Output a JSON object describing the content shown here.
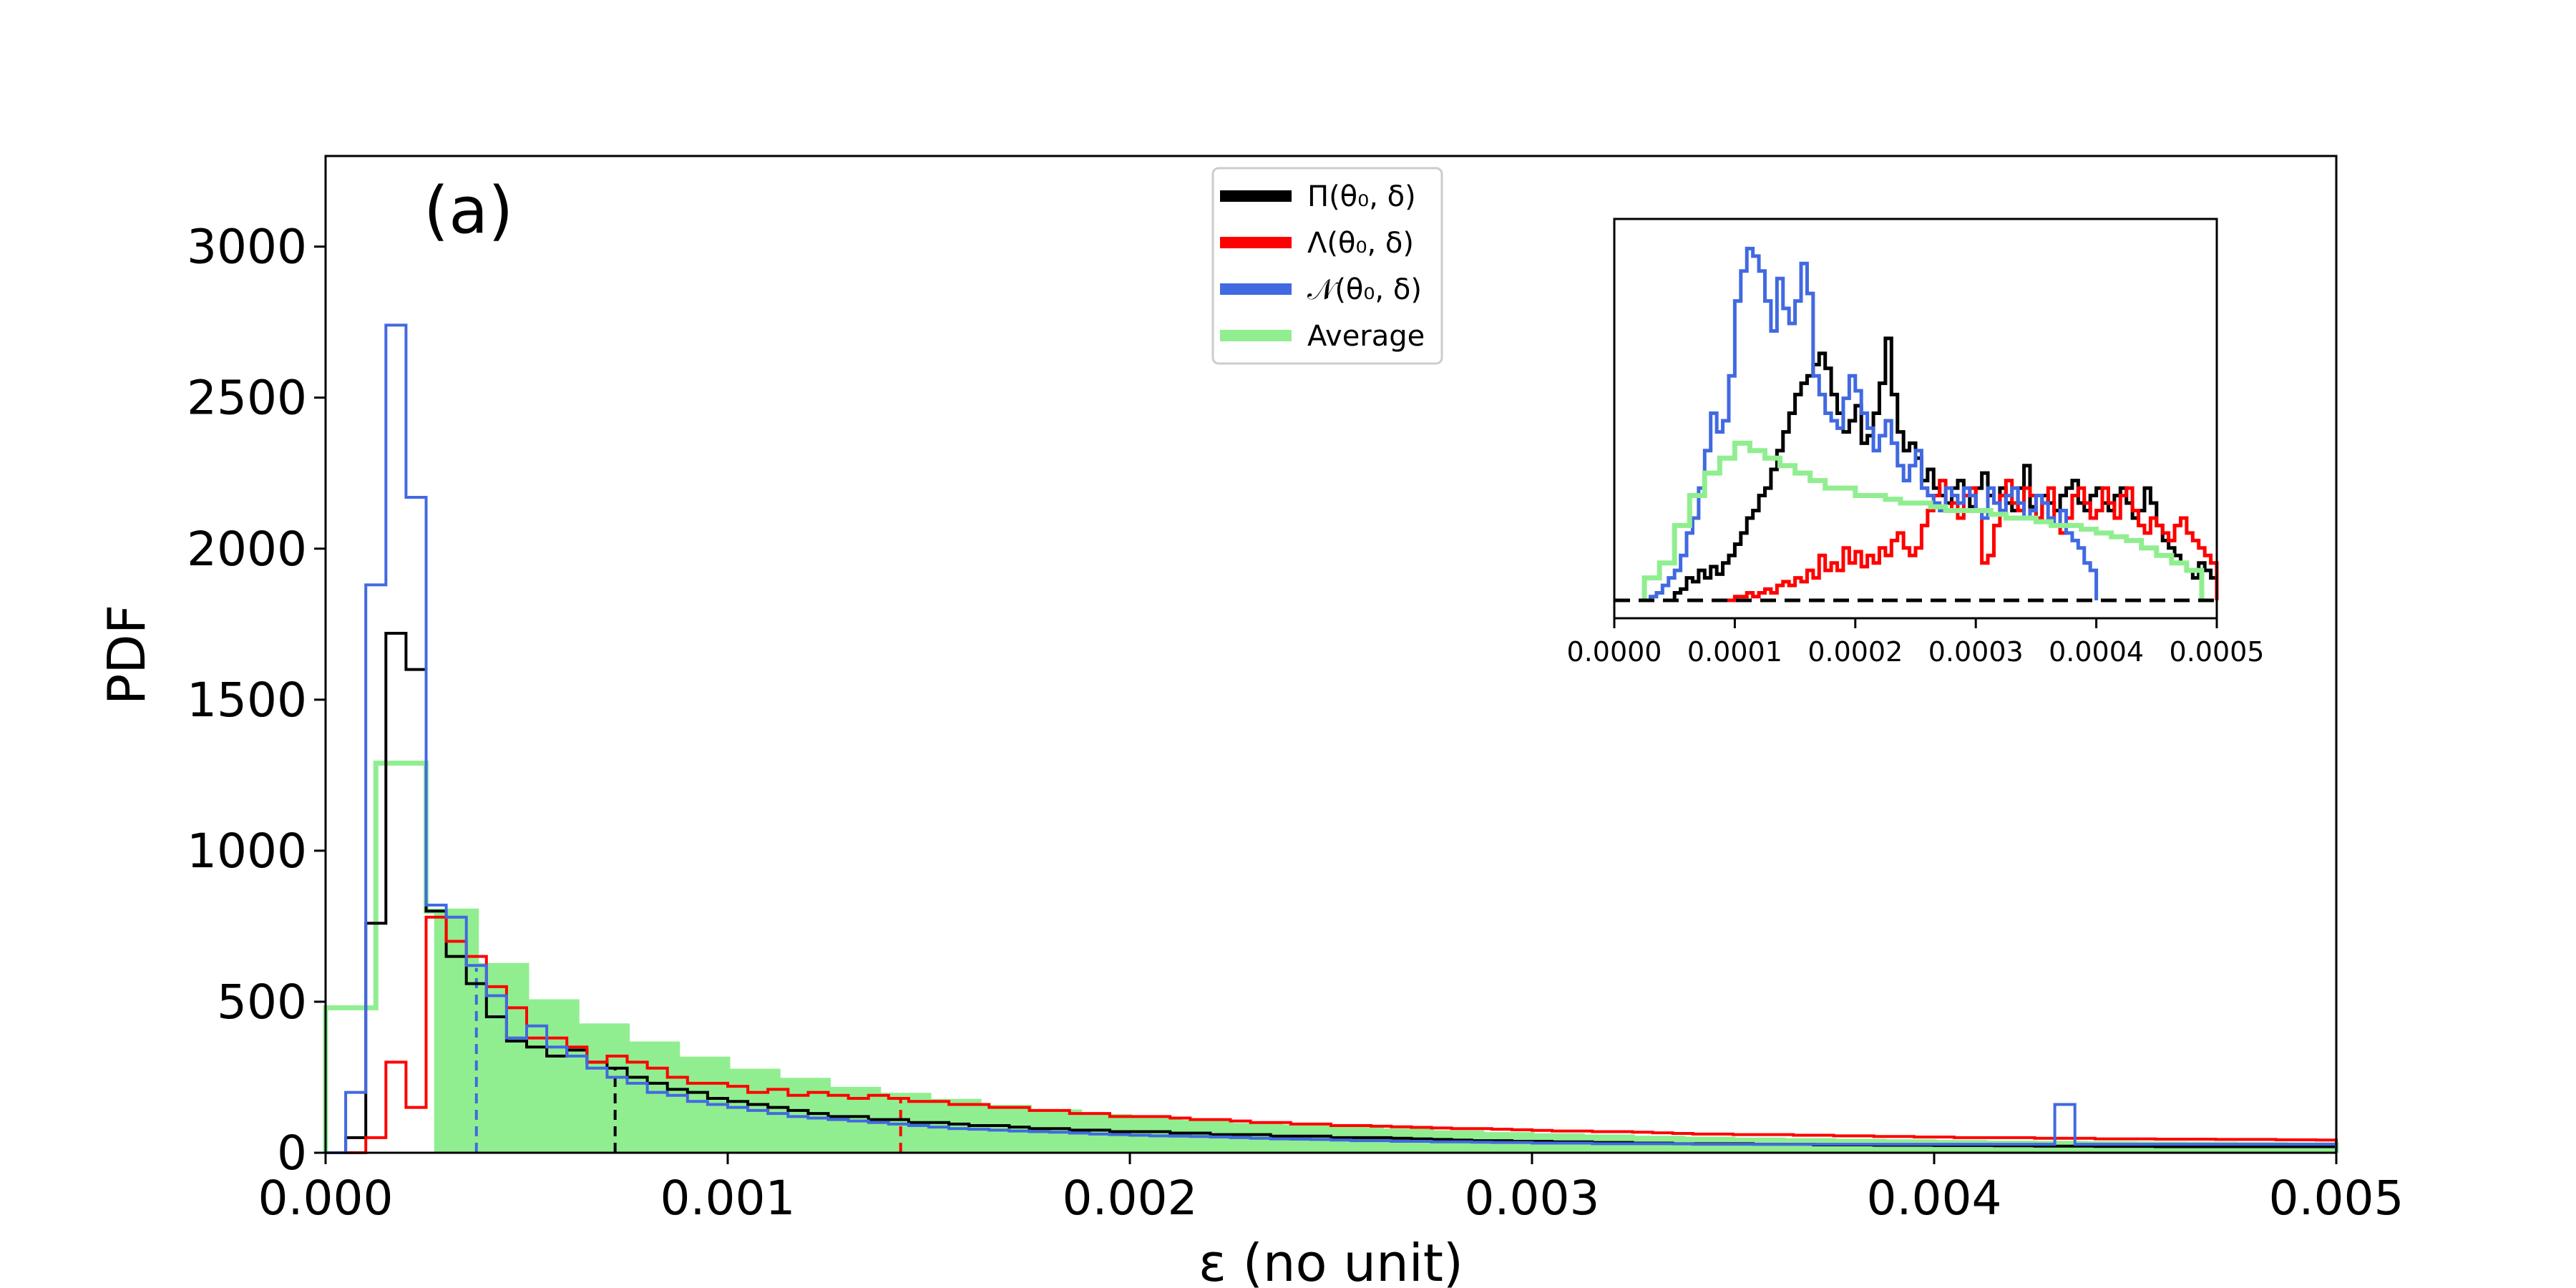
{
  "chart_data": {
    "type": "histogram",
    "panel_label": "(a)",
    "xlabel": "ε (no unit)",
    "ylabel": "PDF",
    "xlim": [
      0,
      0.005
    ],
    "ylim": [
      0,
      3300
    ],
    "x_ticks": [
      "0.000",
      "0.001",
      "0.002",
      "0.003",
      "0.004",
      "0.005"
    ],
    "y_ticks": [
      "0",
      "500",
      "1000",
      "1500",
      "2000",
      "2500",
      "3000"
    ],
    "grid": false,
    "legend_position": "top-center",
    "series": [
      {
        "name": "Π(θ₀, δ)",
        "color": "#000000",
        "bin_start": 5e-05,
        "bin_width": 5e-05,
        "values": [
          50,
          760,
          1720,
          1600,
          800,
          650,
          560,
          450,
          370,
          350,
          320,
          340,
          300,
          280,
          250,
          230,
          210,
          200,
          180,
          170,
          160,
          150,
          140,
          130,
          120,
          120,
          110,
          110,
          100,
          100,
          95,
          90,
          90,
          85,
          80,
          80,
          75,
          75,
          70,
          70,
          70,
          65,
          65,
          60,
          60,
          60,
          55,
          55,
          55,
          50,
          50,
          50,
          48,
          46,
          44,
          42,
          40,
          40,
          38,
          38,
          36,
          36,
          34,
          34,
          32,
          32,
          30,
          30,
          30,
          30,
          28,
          28,
          28,
          26,
          26,
          26,
          25,
          25,
          25,
          24,
          24,
          24,
          23,
          23,
          22,
          22,
          22,
          21,
          21,
          21,
          20,
          20,
          20,
          20,
          20,
          20,
          20,
          20,
          20
        ]
      },
      {
        "name": "Λ(θ₀, δ)",
        "color": "#ff0000",
        "bin_start": 5e-05,
        "bin_width": 5e-05,
        "values": [
          0,
          50,
          300,
          150,
          780,
          700,
          650,
          550,
          480,
          380,
          380,
          350,
          300,
          320,
          300,
          280,
          250,
          230,
          230,
          220,
          200,
          210,
          190,
          200,
          190,
          180,
          190,
          180,
          170,
          170,
          160,
          160,
          150,
          150,
          140,
          140,
          130,
          130,
          120,
          120,
          120,
          115,
          110,
          110,
          105,
          100,
          100,
          95,
          95,
          90,
          90,
          88,
          86,
          84,
          82,
          80,
          80,
          78,
          76,
          74,
          72,
          72,
          70,
          70,
          68,
          66,
          64,
          62,
          62,
          60,
          60,
          60,
          58,
          58,
          56,
          56,
          54,
          54,
          52,
          52,
          50,
          50,
          50,
          50,
          48,
          48,
          48,
          46,
          46,
          46,
          45,
          45,
          45,
          44,
          44,
          44,
          43,
          43,
          42
        ]
      },
      {
        "name": "𝒩(θ₀, δ)",
        "color": "#4169e1",
        "bin_start": 0.0,
        "bin_width": 5e-05,
        "values": [
          0,
          200,
          1880,
          2740,
          2170,
          820,
          780,
          620,
          520,
          380,
          420,
          350,
          320,
          280,
          250,
          230,
          200,
          190,
          170,
          160,
          150,
          140,
          130,
          120,
          115,
          110,
          105,
          100,
          95,
          90,
          85,
          80,
          78,
          75,
          72,
          70,
          68,
          65,
          62,
          60,
          58,
          56,
          55,
          54,
          52,
          50,
          48,
          46,
          45,
          44,
          42,
          40,
          40,
          38,
          38,
          36,
          36,
          35,
          34,
          34,
          32,
          32,
          32,
          30,
          30,
          30,
          30,
          30,
          28,
          28,
          28,
          28,
          28,
          28,
          28,
          28,
          28,
          28,
          28,
          28,
          28,
          28,
          28,
          28,
          28,
          28,
          160,
          28,
          28,
          28,
          28,
          28,
          28,
          28,
          28,
          28,
          28,
          28,
          28,
          28,
          28
        ]
      },
      {
        "name": "Average",
        "color": "#90ee90",
        "bin_start": 0.0,
        "bin_width": 0.000125,
        "values": [
          480,
          1290,
          800,
          620,
          500,
          420,
          360,
          310,
          270,
          240,
          210,
          190,
          170,
          150,
          135,
          120,
          110,
          100,
          90,
          85,
          78,
          72,
          66,
          60,
          56,
          52,
          48,
          45,
          42,
          40,
          38,
          36,
          34,
          32,
          31,
          30,
          29,
          28,
          27,
          26
        ]
      }
    ],
    "vertical_markers": [
      {
        "series": "𝒩(θ₀, δ)",
        "x": 0.000375,
        "color": "#4169e1"
      },
      {
        "series": "Π(θ₀, δ)",
        "x": 0.00072,
        "color": "#000000"
      },
      {
        "series": "Λ(θ₀, δ)",
        "x": 0.00143,
        "color": "#ff0000"
      }
    ],
    "inset": {
      "xlim": [
        0,
        0.0005
      ],
      "x_ticks": [
        "0.0000",
        "0.0001",
        "0.0002",
        "0.0003",
        "0.0004",
        "0.0005"
      ],
      "ylim": [
        0,
        1
      ],
      "baseline_style": "dashed",
      "series": [
        {
          "name": "Π(θ₀, δ)",
          "color": "#000000",
          "bin_start": 5e-05,
          "bin_width": 5e-06,
          "values": [
            0.02,
            0.03,
            0.06,
            0.05,
            0.08,
            0.06,
            0.09,
            0.07,
            0.1,
            0.12,
            0.15,
            0.18,
            0.22,
            0.24,
            0.28,
            0.3,
            0.35,
            0.4,
            0.45,
            0.5,
            0.55,
            0.58,
            0.6,
            0.63,
            0.66,
            0.62,
            0.55,
            0.5,
            0.45,
            0.48,
            0.52,
            0.42,
            0.44,
            0.5,
            0.58,
            0.7,
            0.55,
            0.45,
            0.4,
            0.42,
            0.38,
            0.32,
            0.35,
            0.3,
            0.28,
            0.26,
            0.3,
            0.32,
            0.28,
            0.25,
            0.3,
            0.34,
            0.28,
            0.26,
            0.3,
            0.26,
            0.24,
            0.3,
            0.36,
            0.25,
            0.22,
            0.28,
            0.26,
            0.24,
            0.28,
            0.3,
            0.32,
            0.26,
            0.24,
            0.28,
            0.3,
            0.26,
            0.24,
            0.28,
            0.3,
            0.26,
            0.22,
            0.24,
            0.3,
            0.26,
            0.2,
            0.16,
            0.14,
            0.12,
            0.1,
            0.08,
            0.06,
            0.1,
            0.08,
            0.06
          ]
        },
        {
          "name": "Λ(θ₀, δ)",
          "color": "#ff0000",
          "bin_start": 9e-05,
          "bin_width": 5e-06,
          "values": [
            0.0,
            0.0,
            0.01,
            0.01,
            0.02,
            0.01,
            0.02,
            0.03,
            0.02,
            0.04,
            0.05,
            0.04,
            0.06,
            0.05,
            0.08,
            0.06,
            0.12,
            0.08,
            0.1,
            0.08,
            0.14,
            0.1,
            0.13,
            0.09,
            0.12,
            0.1,
            0.14,
            0.12,
            0.16,
            0.18,
            0.14,
            0.12,
            0.14,
            0.2,
            0.24,
            0.28,
            0.32,
            0.24,
            0.26,
            0.22,
            0.28,
            0.3,
            0.24,
            0.1,
            0.12,
            0.2,
            0.28,
            0.32,
            0.26,
            0.24,
            0.3,
            0.28,
            0.22,
            0.26,
            0.3,
            0.2,
            0.18,
            0.22,
            0.28,
            0.3,
            0.26,
            0.22,
            0.24,
            0.3,
            0.26,
            0.22,
            0.28,
            0.3,
            0.24,
            0.2,
            0.18,
            0.22,
            0.2,
            0.18,
            0.16,
            0.2,
            0.22,
            0.18,
            0.16,
            0.14,
            0.12,
            0.1
          ]
        },
        {
          "name": "𝒩(θ₀, δ)",
          "color": "#4169e1",
          "bin_start": 3e-05,
          "bin_width": 5e-06,
          "values": [
            0.01,
            0.02,
            0.04,
            0.06,
            0.08,
            0.12,
            0.18,
            0.22,
            0.3,
            0.4,
            0.5,
            0.45,
            0.48,
            0.6,
            0.8,
            0.88,
            0.94,
            0.92,
            0.88,
            0.8,
            0.72,
            0.86,
            0.78,
            0.74,
            0.8,
            0.9,
            0.82,
            0.6,
            0.55,
            0.5,
            0.48,
            0.46,
            0.54,
            0.6,
            0.56,
            0.5,
            0.46,
            0.4,
            0.44,
            0.48,
            0.42,
            0.36,
            0.32,
            0.36,
            0.4,
            0.3,
            0.28,
            0.26,
            0.24,
            0.3,
            0.28,
            0.26,
            0.3,
            0.28,
            0.24,
            0.22,
            0.3,
            0.26,
            0.24,
            0.28,
            0.3,
            0.26,
            0.22,
            0.24,
            0.28,
            0.26,
            0.22,
            0.2,
            0.24,
            0.18,
            0.16,
            0.14,
            0.1,
            0.08
          ]
        },
        {
          "name": "Average",
          "color": "#90ee90",
          "bin_start": 2.5e-05,
          "bin_width": 1.25e-05,
          "values": [
            0.06,
            0.1,
            0.2,
            0.28,
            0.34,
            0.38,
            0.42,
            0.4,
            0.38,
            0.36,
            0.34,
            0.32,
            0.3,
            0.3,
            0.28,
            0.28,
            0.27,
            0.26,
            0.26,
            0.25,
            0.24,
            0.24,
            0.24,
            0.23,
            0.22,
            0.22,
            0.21,
            0.2,
            0.2,
            0.19,
            0.18,
            0.17,
            0.16,
            0.14,
            0.12,
            0.1,
            0.08
          ]
        }
      ]
    }
  }
}
